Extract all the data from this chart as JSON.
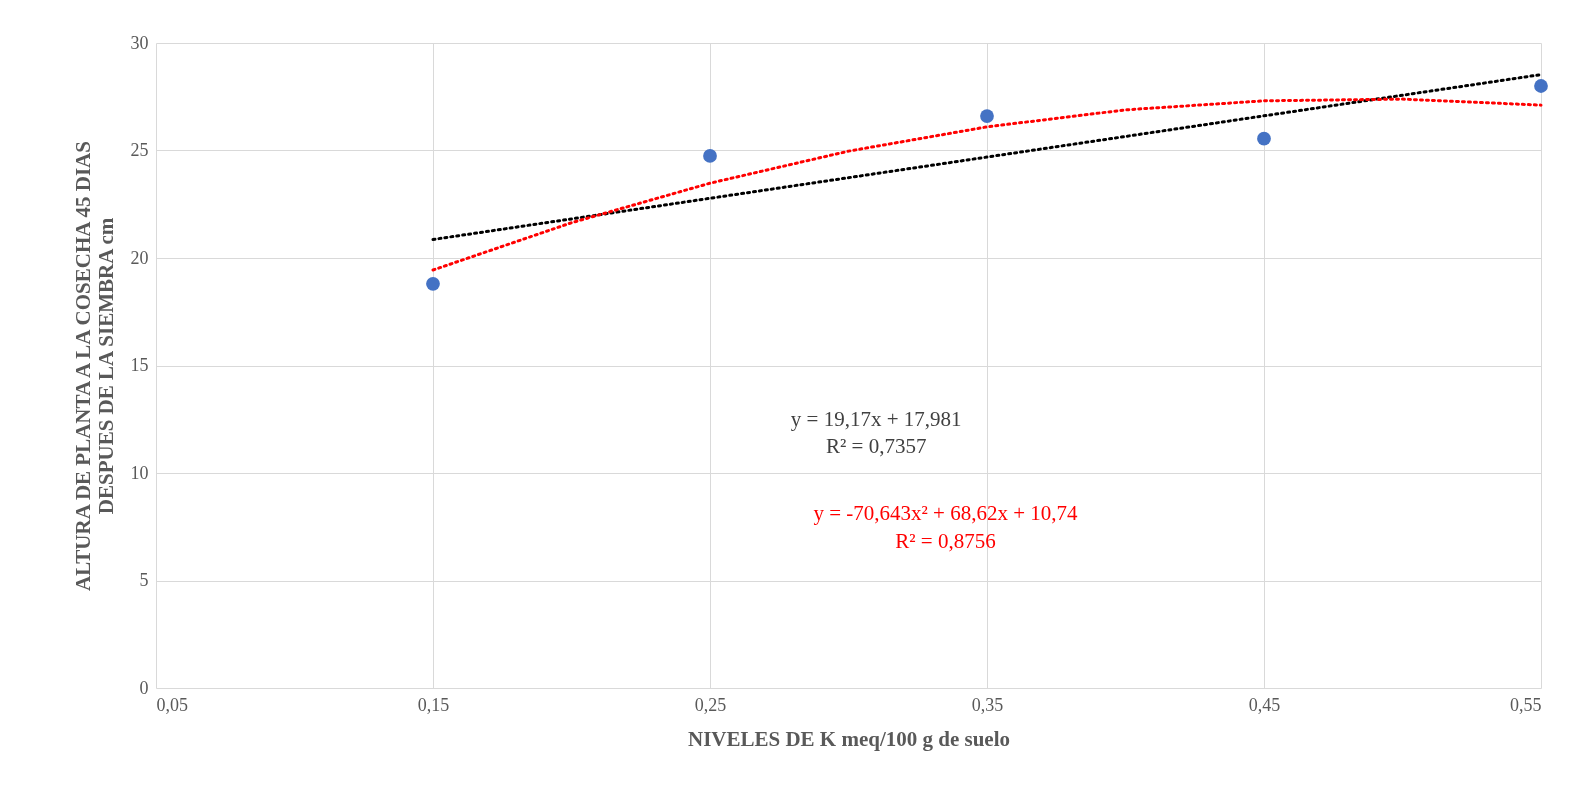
{
  "chart_data": {
    "type": "scatter",
    "xlabel": "NIVELES DE K meq/100 g de suelo",
    "ylabel": "ALTURA DE PLANTA A LA COSECHA 45 DIAS\nDESPUES DE LA SIEMBRA cm",
    "x": [
      0.15,
      0.25,
      0.35,
      0.45,
      0.55
    ],
    "series": [
      {
        "color": "#4472c4",
        "marker": "circle",
        "values": [
          18.8,
          24.75,
          26.6,
          25.55,
          28.0
        ]
      },
      {
        "type": "line",
        "color": "#000000",
        "line_style": "dotted",
        "x": [
          0.15,
          0.55
        ],
        "values": [
          20.86,
          28.53
        ]
      },
      {
        "type": "line",
        "color": "#ff0000",
        "line_style": "dotted",
        "x": [
          0.15,
          0.2,
          0.25,
          0.3,
          0.35,
          0.4,
          0.45,
          0.5,
          0.55
        ],
        "values": [
          19.44,
          21.64,
          23.48,
          24.97,
          26.1,
          26.89,
          27.31,
          27.39,
          27.11
        ]
      }
    ],
    "xlim": [
      0.05,
      0.55
    ],
    "xticks": [
      {
        "value": 0.05,
        "label": "0,05"
      },
      {
        "value": 0.15,
        "label": "0,15"
      },
      {
        "value": 0.25,
        "label": "0,25"
      },
      {
        "value": 0.35,
        "label": "0,35"
      },
      {
        "value": 0.45,
        "label": "0,45"
      },
      {
        "value": 0.55,
        "label": "0,55"
      }
    ],
    "ylim": [
      0,
      30
    ],
    "yticks": [
      0,
      5,
      10,
      15,
      20,
      25,
      30
    ],
    "grid": true,
    "annotations": [
      "y = 19,17x + 17,981",
      "R² = 0,7357",
      "y = -70,643x² + 68,62x + 10,74",
      "R² = 0,8756"
    ]
  }
}
